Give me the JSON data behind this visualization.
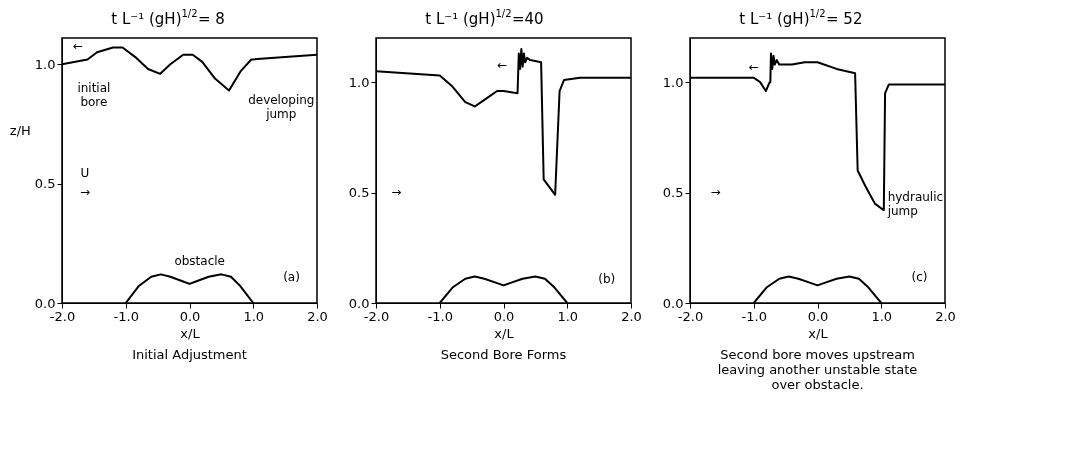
{
  "chart_data": [
    {
      "type": "line",
      "title": "t L⁻¹ (gH)$^{1/2}$= 8",
      "xlabel": "x/L",
      "ylabel": "z/H",
      "xlim": [
        -2,
        2
      ],
      "ylim": [
        0,
        1.11
      ],
      "xticks": [
        {
          "value": -2,
          "label": "-2.0"
        },
        {
          "value": -1,
          "label": "-1.0"
        },
        {
          "value": 0,
          "label": "0.0"
        },
        {
          "value": 1,
          "label": "1.0"
        },
        {
          "value": 2,
          "label": "2.0"
        }
      ],
      "yticks": [
        {
          "value": 0,
          "label": "0.0"
        },
        {
          "value": 0.5,
          "label": "0.5"
        },
        {
          "value": 1,
          "label": "1.0"
        }
      ],
      "series": [
        {
          "color": "#000000",
          "x": [
            -2,
            -1.6,
            -1.45,
            -1.2,
            -1.05,
            -0.85,
            -0.65,
            -0.46,
            -0.3,
            -0.1,
            0.05,
            0.2,
            0.4,
            0.62,
            0.8,
            0.97,
            1.5,
            2
          ],
          "values": [
            1.0,
            1.02,
            1.05,
            1.07,
            1.07,
            1.03,
            0.98,
            0.96,
            1.0,
            1.04,
            1.04,
            1.01,
            0.94,
            0.89,
            0.97,
            1.02,
            1.03,
            1.04
          ]
        },
        {
          "color": "#000000",
          "x": [
            -1,
            -0.8,
            -0.6,
            -0.45,
            -0.3,
            -0.1,
            0,
            0.1,
            0.3,
            0.5,
            0.65,
            0.8,
            1
          ],
          "values": [
            0,
            0.07,
            0.11,
            0.12,
            0.11,
            0.09,
            0.08,
            0.09,
            0.11,
            0.12,
            0.11,
            0.07,
            0
          ]
        }
      ],
      "annotations": [
        "initial\nbore",
        "developing\njump",
        "obstacle",
        "(a)",
        "U",
        "→",
        "←",
        "Initial Adjustment"
      ]
    },
    {
      "type": "line",
      "title": "t L⁻¹ (gH)$^{1/2}$=40",
      "xlabel": "x/L",
      "xlim": [
        -2,
        2
      ],
      "ylim": [
        0,
        1.2
      ],
      "xticks": [
        {
          "value": -2,
          "label": "-2.0"
        },
        {
          "value": -1,
          "label": "-1.0"
        },
        {
          "value": 0,
          "label": "0.0"
        },
        {
          "value": 1,
          "label": "1.0"
        },
        {
          "value": 2,
          "label": "2.0"
        }
      ],
      "yticks": [
        {
          "value": 0,
          "label": "0.0"
        },
        {
          "value": 0.5,
          "label": "0.5"
        },
        {
          "value": 1,
          "label": "1.0"
        }
      ],
      "series": [
        {
          "color": "#000000",
          "x": [
            -2,
            -1.0,
            -0.8,
            -0.6,
            -0.45,
            -0.3,
            -0.1,
            0.0,
            0.22,
            0.24,
            0.26,
            0.28,
            0.3,
            0.32,
            0.34,
            0.37,
            0.42,
            0.59,
            0.63,
            0.81,
            0.88,
            0.95,
            1.2,
            2.0
          ],
          "values": [
            1.05,
            1.03,
            0.98,
            0.91,
            0.89,
            0.92,
            0.96,
            0.96,
            0.95,
            1.13,
            1.06,
            1.15,
            1.07,
            1.13,
            1.09,
            1.11,
            1.1,
            1.09,
            0.56,
            0.49,
            0.96,
            1.01,
            1.02,
            1.02
          ]
        },
        {
          "color": "#000000",
          "x": [
            -1,
            -0.8,
            -0.6,
            -0.45,
            -0.3,
            -0.1,
            0,
            0.1,
            0.3,
            0.5,
            0.65,
            0.8,
            1
          ],
          "values": [
            0,
            0.07,
            0.11,
            0.12,
            0.11,
            0.09,
            0.08,
            0.09,
            0.11,
            0.12,
            0.11,
            0.07,
            0
          ]
        }
      ],
      "annotations": [
        "(b)",
        "←",
        "→",
        "Second Bore Forms"
      ]
    },
    {
      "type": "line",
      "title": "t L⁻¹ (gH)$^{1/2}$= 52",
      "xlabel": "x/L",
      "xlim": [
        -2,
        2
      ],
      "ylim": [
        0,
        1.2
      ],
      "xticks": [
        {
          "value": -2,
          "label": "-2.0"
        },
        {
          "value": -1,
          "label": "-1.0"
        },
        {
          "value": 0,
          "label": "0.0"
        },
        {
          "value": 1,
          "label": "1.0"
        },
        {
          "value": 2,
          "label": "2.0"
        }
      ],
      "yticks": [
        {
          "value": 0,
          "label": "0.0"
        },
        {
          "value": 0.5,
          "label": "0.5"
        },
        {
          "value": 1,
          "label": "1.0"
        }
      ],
      "series": [
        {
          "color": "#000000",
          "x": [
            -2,
            -1.0,
            -0.9,
            -0.81,
            -0.75,
            -0.74,
            -0.73,
            -0.71,
            -0.69,
            -0.67,
            -0.64,
            -0.6,
            -0.4,
            -0.2,
            0,
            0.3,
            0.59,
            0.63,
            0.75,
            0.9,
            1.04,
            1.06,
            1.12,
            2
          ],
          "values": [
            1.02,
            1.02,
            1.0,
            0.96,
            1.0,
            1.0,
            1.13,
            1.06,
            1.12,
            1.08,
            1.1,
            1.08,
            1.08,
            1.09,
            1.09,
            1.06,
            1.04,
            0.6,
            0.53,
            0.45,
            0.42,
            0.95,
            0.99,
            0.99
          ]
        },
        {
          "color": "#000000",
          "x": [
            -1,
            -0.8,
            -0.6,
            -0.45,
            -0.3,
            -0.1,
            0,
            0.1,
            0.3,
            0.5,
            0.65,
            0.8,
            1
          ],
          "values": [
            0,
            0.07,
            0.11,
            0.12,
            0.11,
            0.09,
            0.08,
            0.09,
            0.11,
            0.12,
            0.11,
            0.07,
            0
          ]
        }
      ],
      "annotations": [
        "(c)",
        "hydraulic\njump",
        "←",
        "→",
        "Second bore moves upstream\nleaving another unstable state\nover obstacle."
      ]
    }
  ]
}
